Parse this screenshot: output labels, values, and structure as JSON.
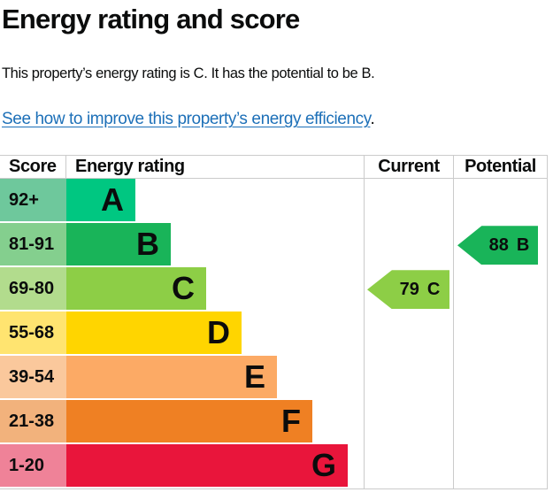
{
  "page": {
    "title": "Energy rating and score",
    "summary": "This property’s energy rating is C. It has the potential to be B.",
    "link_text": "See how to improve this property’s energy efficiency",
    "link_suffix": "."
  },
  "table": {
    "headers": {
      "score": "Score",
      "rating": "Energy rating",
      "current": "Current",
      "potential": "Potential"
    },
    "bands": [
      {
        "score": "92+",
        "letter": "A",
        "color": "#00c781",
        "score_bg": "#6ec89c"
      },
      {
        "score": "81-91",
        "letter": "B",
        "color": "#19b459",
        "score_bg": "#84cf8e"
      },
      {
        "score": "69-80",
        "letter": "C",
        "color": "#8dce46",
        "score_bg": "#b2dc8d"
      },
      {
        "score": "55-68",
        "letter": "D",
        "color": "#ffd500",
        "score_bg": "#ffe470"
      },
      {
        "score": "39-54",
        "letter": "E",
        "color": "#fcaa65",
        "score_bg": "#fac89c"
      },
      {
        "score": "21-38",
        "letter": "F",
        "color": "#ef8023",
        "score_bg": "#f2b27c"
      },
      {
        "score": "1-20",
        "letter": "G",
        "color": "#e9153b",
        "score_bg": "#ef8298"
      }
    ],
    "current": {
      "value": "79",
      "letter": "C",
      "band": "C",
      "color": "#8dce46"
    },
    "potential": {
      "value": "88",
      "letter": "B",
      "band": "B",
      "color": "#19b459"
    }
  },
  "colors": {
    "text": "#0b0c0c",
    "link": "#1d70b8",
    "border": "#cbcbcb"
  },
  "chart_data": {
    "type": "bar",
    "title": "Energy rating and score",
    "categories": [
      "A",
      "B",
      "C",
      "D",
      "E",
      "F",
      "G"
    ],
    "score_ranges": [
      "92+",
      "81-91",
      "69-80",
      "55-68",
      "39-54",
      "21-38",
      "1-20"
    ],
    "band_colors": [
      "#00c781",
      "#19b459",
      "#8dce46",
      "#ffd500",
      "#fcaa65",
      "#ef8023",
      "#e9153b"
    ],
    "columns": [
      "Score",
      "Energy rating",
      "Current",
      "Potential"
    ],
    "current": {
      "score": 79,
      "band": "C"
    },
    "potential": {
      "score": 88,
      "band": "B"
    },
    "layout_hint": "stepped horizontal bars, width increasing from A to G; current/potential shown as left-pointing arrow markers aligned to their band row"
  }
}
